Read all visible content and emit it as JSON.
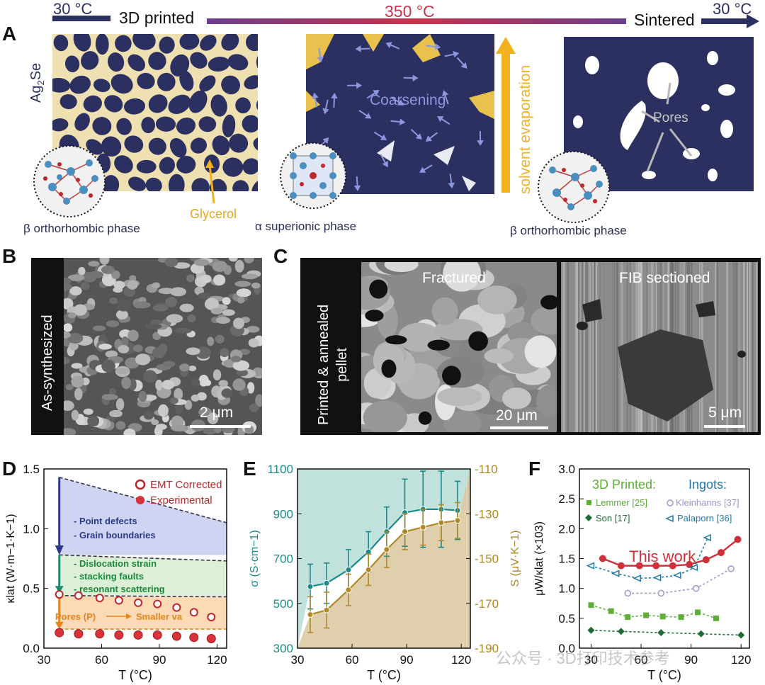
{
  "figure": {
    "top": {
      "left_temp": "30 °C",
      "label_3d": "3D printed",
      "mid_temp": "350 °C",
      "label_sintered": "Sintered",
      "right_temp": "30 °C",
      "colors": {
        "navy": "#2c3060",
        "purple": "#6a3f8a",
        "red": "#c8324a"
      }
    },
    "panel_a": {
      "letter": "A",
      "ag2se": "Ag2Se",
      "glycerol": "Glycerol",
      "coarsening": "Coarsening",
      "solvent": "solvent evaporation",
      "pores": "Pores",
      "phase1": "β  orthorhombic phase",
      "phase2": "α superionic phase",
      "phase3": "β  orthorhombic phase"
    },
    "panel_b": {
      "letter": "B",
      "side": "As-synthesized",
      "scale": "2 μm"
    },
    "panel_c": {
      "letter": "C",
      "side_line1": "Printed & annealed",
      "side_line2": "pellet",
      "img1": "Fractured",
      "img2": "FIB sectioned",
      "scale1": "20 μm",
      "scale2": "5 μm"
    },
    "watermark": "公众号 · 3D打印技术参考"
  },
  "chart_data": [
    {
      "panel": "D",
      "type": "scatter",
      "xlabel": "T (°C)",
      "ylabel": "κlat (W·m−1·K−1)",
      "xlim": [
        30,
        125
      ],
      "ylim": [
        0,
        1.5
      ],
      "xticks": [
        30,
        60,
        90,
        120
      ],
      "yticks": [
        0.0,
        0.5,
        1.0,
        1.5
      ],
      "legend": [
        "EMT Corrected",
        "Experimental"
      ],
      "series": [
        {
          "name": "EMT Corrected",
          "x": [
            38,
            48,
            59,
            69,
            79,
            89,
            99,
            108,
            117
          ],
          "values": [
            0.45,
            0.44,
            0.42,
            0.4,
            0.38,
            0.37,
            0.34,
            0.3,
            0.26
          ]
        },
        {
          "name": "Experimental",
          "x": [
            38,
            48,
            59,
            69,
            79,
            89,
            99,
            108,
            117
          ],
          "values": [
            0.13,
            0.12,
            0.12,
            0.11,
            0.11,
            0.11,
            0.1,
            0.09,
            0.08
          ]
        }
      ],
      "bands": [
        {
          "label_lines": [
            "- Point defects",
            "- Grain boundaries"
          ],
          "from": 0.78,
          "to_start": 1.43,
          "to_end": 1.05,
          "color": "#c8cdf0"
        },
        {
          "label_lines": [
            "- Dislocation strain",
            "- stacking faults",
            "- resonant scattering"
          ],
          "from": 0.44,
          "to_start": 0.78,
          "to_end": 0.73,
          "color": "#d6ecd0"
        },
        {
          "label_lines": [
            "Pores (P)",
            "Smaller va"
          ],
          "from": 0.16,
          "to_start": 0.44,
          "to_end": 0.43,
          "color": "#fbd3a8"
        }
      ]
    },
    {
      "panel": "E",
      "type": "line",
      "xlabel": "T (°C)",
      "ylabel_left": "σ (S·cm−1)",
      "ylabel_right": "S (μV·K−1)",
      "xlim": [
        30,
        125
      ],
      "ylim_left": [
        300,
        1100
      ],
      "ylim_right": [
        -190,
        -110
      ],
      "xticks": [
        30,
        60,
        90,
        120
      ],
      "yticks_left": [
        300,
        500,
        700,
        900,
        1100
      ],
      "yticks_right": [
        -190,
        -170,
        -150,
        -130,
        -110
      ],
      "series": [
        {
          "name": "σ",
          "axis": "left",
          "color": "#1a8a8a",
          "x": [
            37,
            46,
            58,
            69,
            79,
            89,
            99,
            109,
            118
          ],
          "values": [
            575,
            590,
            650,
            730,
            820,
            905,
            920,
            920,
            915
          ],
          "err": [
            100,
            90,
            90,
            90,
            110,
            150,
            170,
            170,
            130
          ]
        },
        {
          "name": "S",
          "axis": "right",
          "color": "#b08a28",
          "x": [
            37,
            46,
            58,
            69,
            79,
            89,
            99,
            109,
            118
          ],
          "values": [
            -175,
            -173,
            -164,
            -155,
            -146,
            -138,
            -136,
            -134,
            -133
          ],
          "err": [
            8,
            8,
            7,
            7,
            8,
            8,
            8,
            8,
            8
          ]
        }
      ]
    },
    {
      "panel": "F",
      "type": "line",
      "xlabel": "T (°C)",
      "ylabel": "μW/κlat (×103)",
      "xlim": [
        23,
        125
      ],
      "ylim": [
        0,
        3.0
      ],
      "xticks": [
        30,
        60,
        90,
        120
      ],
      "yticks": [
        0.0,
        0.5,
        1.0,
        1.5,
        2.0,
        2.5,
        3.0
      ],
      "group_labels": [
        "3D Printed:",
        "Ingots:"
      ],
      "annotation": "This work",
      "series": [
        {
          "name": "This work",
          "color": "#d0303a",
          "x": [
            37,
            48,
            59,
            69,
            79,
            89,
            99,
            108,
            118
          ],
          "values": [
            1.5,
            1.38,
            1.38,
            1.38,
            1.38,
            1.4,
            1.48,
            1.6,
            1.82
          ]
        },
        {
          "name": "Lemmer [25]",
          "color": "#5fae3a",
          "x": [
            30,
            42,
            52,
            63,
            73,
            84,
            94,
            105
          ],
          "values": [
            0.72,
            0.62,
            0.52,
            0.55,
            0.53,
            0.52,
            0.6,
            0.5
          ]
        },
        {
          "name": "Son [17]",
          "color": "#1e6b34",
          "x": [
            30,
            48,
            72,
            96,
            120
          ],
          "values": [
            0.3,
            0.28,
            0.26,
            0.24,
            0.22
          ]
        },
        {
          "name": "Kleinhanns [37]",
          "color": "#9b98cc",
          "x": [
            52,
            72,
            93,
            114
          ],
          "values": [
            0.92,
            0.92,
            1.0,
            1.33
          ]
        },
        {
          "name": "Palaporn [36]",
          "color": "#2478a8",
          "x": [
            30,
            45,
            58,
            70,
            82,
            92,
            100
          ],
          "values": [
            1.38,
            1.25,
            1.17,
            1.18,
            1.22,
            1.35,
            1.85
          ]
        }
      ]
    }
  ]
}
